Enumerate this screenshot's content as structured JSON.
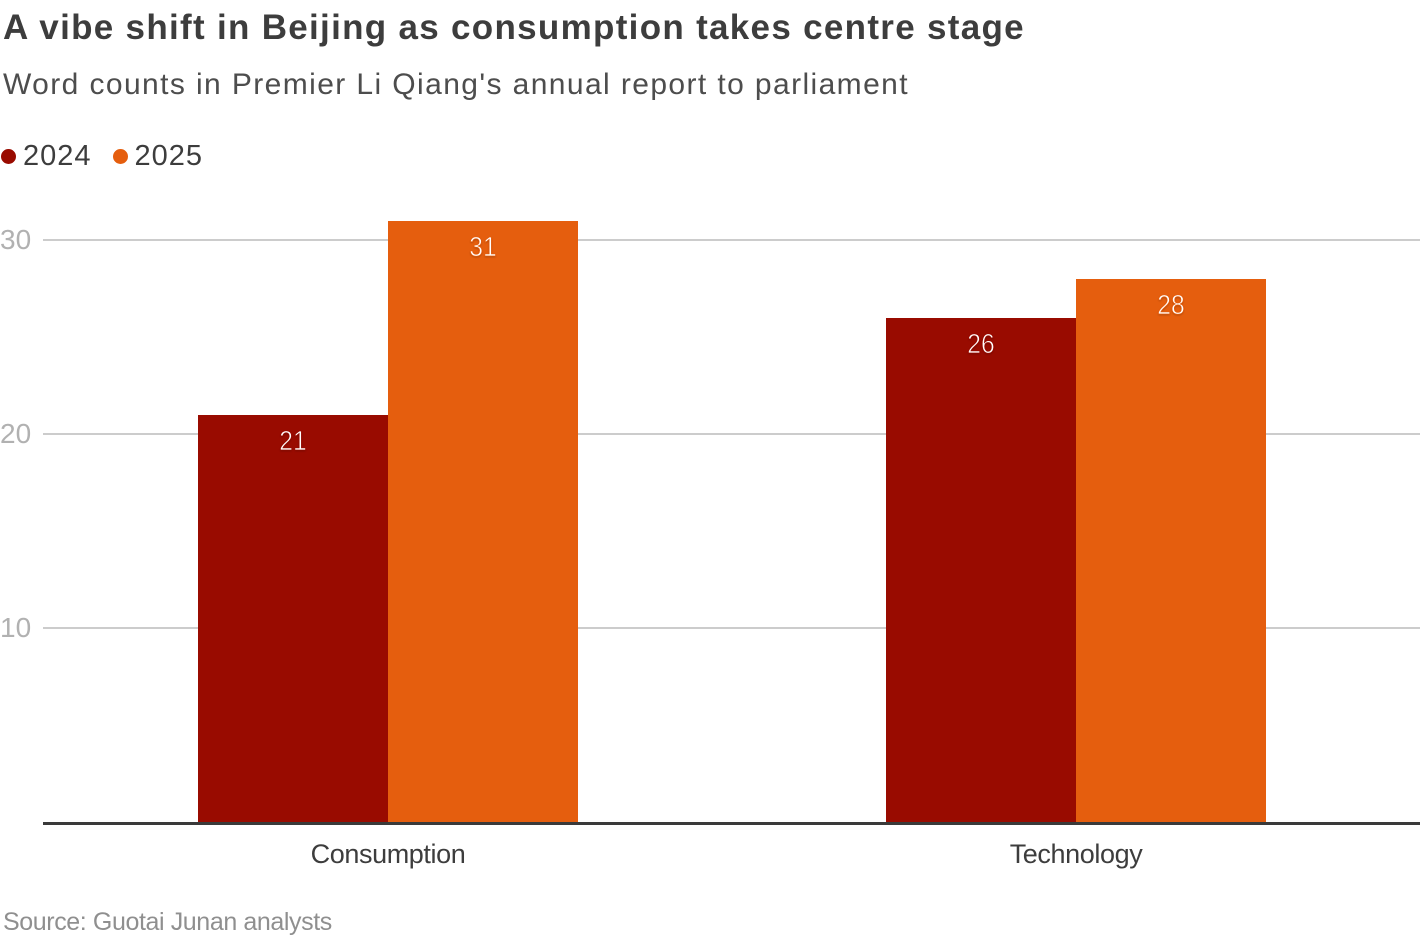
{
  "header": {
    "title": "A vibe shift in Beijing as consumption takes centre stage",
    "subtitle": "Word counts in Premier Li Qiang's annual report to parliament"
  },
  "legend": [
    {
      "label": "2024",
      "color": "#990b00"
    },
    {
      "label": "2025",
      "color": "#e55e0e"
    }
  ],
  "source": "Source: Guotai Junan analysts",
  "chart_data": {
    "type": "bar",
    "categories": [
      "Consumption",
      "Technology"
    ],
    "series": [
      {
        "name": "2024",
        "color": "#990b00",
        "values": [
          21,
          26
        ]
      },
      {
        "name": "2025",
        "color": "#e55e0e",
        "values": [
          31,
          28
        ]
      }
    ],
    "title": "A vibe shift in Beijing as consumption takes centre stage",
    "subtitle": "Word counts in Premier Li Qiang's annual report to parliament",
    "xlabel": "",
    "ylabel": "",
    "yticks": [
      10,
      20,
      30
    ],
    "ylim": [
      0,
      31
    ],
    "grid": true,
    "legend_position": "top-left",
    "value_labels": true
  }
}
